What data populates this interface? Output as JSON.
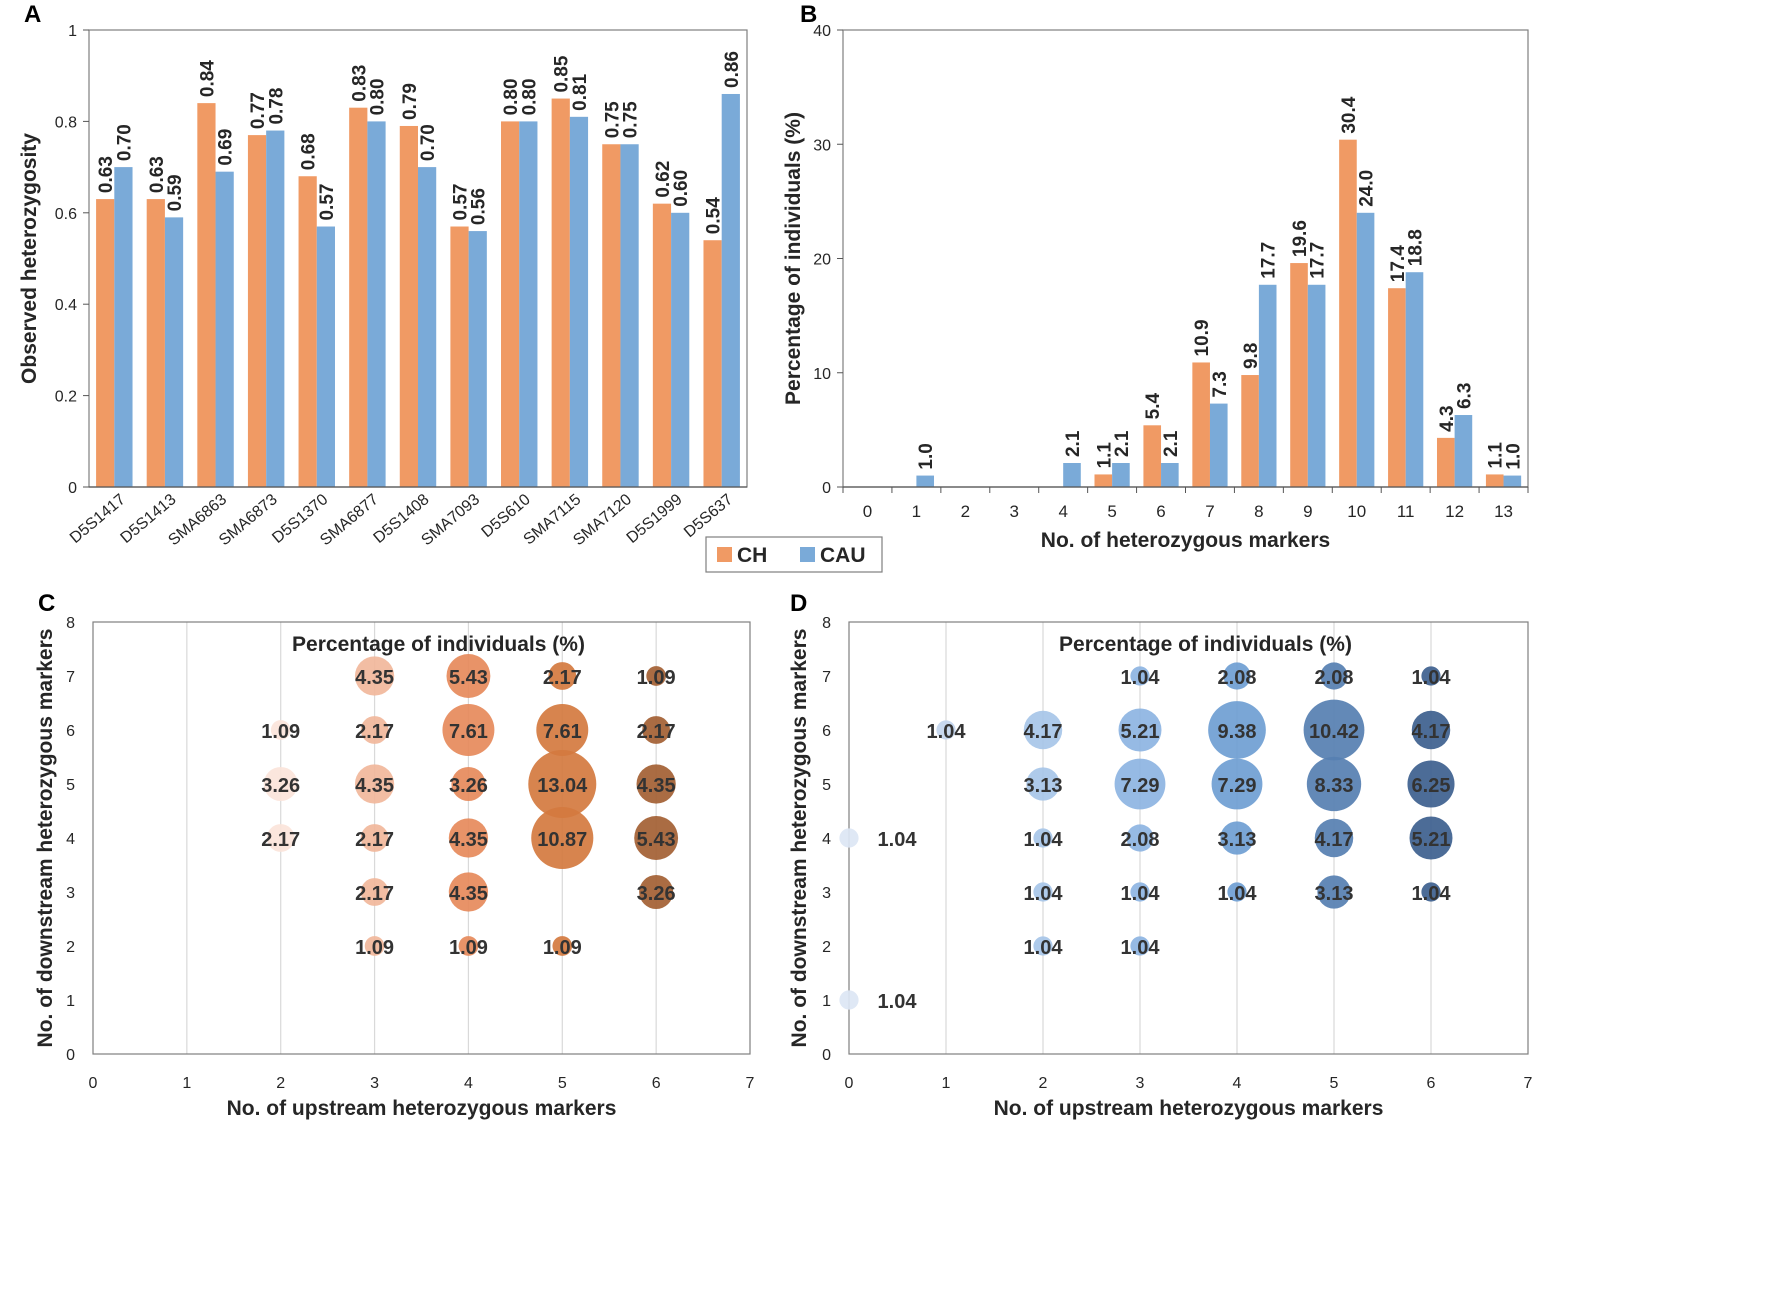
{
  "colors": {
    "ch": "#F09A64",
    "cau": "#7AAAD8",
    "axis": "#333333",
    "grid": "#d9d9d9",
    "text": "#262626"
  },
  "legend": {
    "ch": "CH",
    "cau": "CAU"
  },
  "chart_data": [
    {
      "panel": "A",
      "type": "bar",
      "ylabel": "Observed heterozygosity",
      "xlabel": "",
      "ylim": [
        0,
        1
      ],
      "yticks": [
        "0",
        "0.2",
        "0.4",
        "0.6",
        "0.8",
        "1"
      ],
      "categories": [
        "D5S1417",
        "D5S1413",
        "SMA6863",
        "SMA6873",
        "D5S1370",
        "SMA6877",
        "D5S1408",
        "SMA7093",
        "D5S610",
        "SMA7115",
        "SMA7120",
        "D5S1999",
        "D5S637"
      ],
      "series": [
        {
          "name": "CH",
          "values": [
            0.63,
            0.63,
            0.84,
            0.77,
            0.68,
            0.83,
            0.79,
            0.57,
            0.8,
            0.85,
            0.75,
            0.62,
            0.54
          ],
          "labels": [
            "0.63",
            "0.63",
            "0.84",
            "0.77",
            "0.68",
            "0.83",
            "0.79",
            "0.57",
            "0.80",
            "0.85",
            "0.75",
            "0.62",
            "0.54"
          ]
        },
        {
          "name": "CAU",
          "values": [
            0.7,
            0.59,
            0.69,
            0.78,
            0.57,
            0.8,
            0.7,
            0.56,
            0.8,
            0.81,
            0.75,
            0.6,
            0.86
          ],
          "labels": [
            "0.70",
            "0.59",
            "0.69",
            "0.78",
            "0.57",
            "0.80",
            "0.70",
            "0.56",
            "0.80",
            "0.81",
            "0.75",
            "0.60",
            "0.86"
          ]
        }
      ]
    },
    {
      "panel": "B",
      "type": "bar",
      "ylabel": "Percentage of individuals (%)",
      "xlabel": "No. of heterozygous markers",
      "ylim": [
        0,
        40
      ],
      "yticks": [
        "0",
        "10",
        "20",
        "30",
        "40"
      ],
      "categories": [
        "0",
        "1",
        "2",
        "3",
        "4",
        "5",
        "6",
        "7",
        "8",
        "9",
        "10",
        "11",
        "12",
        "13"
      ],
      "series": [
        {
          "name": "CH",
          "values": [
            0,
            0,
            0,
            0,
            0,
            1.1,
            5.4,
            10.9,
            9.8,
            19.6,
            30.4,
            17.4,
            4.3,
            1.1
          ],
          "labels": [
            "",
            "",
            "",
            "",
            "",
            "1.1",
            "5.4",
            "10.9",
            "9.8",
            "19.6",
            "30.4",
            "17.4",
            "4.3",
            "1.1"
          ]
        },
        {
          "name": "CAU",
          "values": [
            0,
            1.0,
            0,
            0,
            2.1,
            2.1,
            2.1,
            7.3,
            17.7,
            17.7,
            24.0,
            18.8,
            6.3,
            1.0
          ],
          "labels": [
            "",
            "1.0",
            "",
            "",
            "2.1",
            "2.1",
            "2.1",
            "7.3",
            "17.7",
            "17.7",
            "24.0",
            "18.8",
            "6.3",
            "1.0"
          ]
        }
      ]
    },
    {
      "panel": "C",
      "type": "scatter",
      "title": "Percentage of individuals (%)",
      "xlabel": "No. of upstream heterozygous markers",
      "ylabel": "No. of downstream heterozygous markers",
      "xlim": [
        0,
        7
      ],
      "ylim": [
        0,
        8
      ],
      "xticks": [
        "0",
        "1",
        "2",
        "3",
        "4",
        "5",
        "6",
        "7"
      ],
      "yticks": [
        "0",
        "1",
        "2",
        "3",
        "4",
        "5",
        "6",
        "7",
        "8"
      ],
      "points": [
        {
          "x": 2,
          "y": 6,
          "v": 1.09,
          "label": "1.09"
        },
        {
          "x": 2,
          "y": 5,
          "v": 3.26,
          "label": "3.26"
        },
        {
          "x": 2,
          "y": 4,
          "v": 2.17,
          "label": "2.17"
        },
        {
          "x": 3,
          "y": 7,
          "v": 4.35,
          "label": "4.35"
        },
        {
          "x": 3,
          "y": 6,
          "v": 2.17,
          "label": "2.17"
        },
        {
          "x": 3,
          "y": 5,
          "v": 4.35,
          "label": "4.35"
        },
        {
          "x": 3,
          "y": 4,
          "v": 2.17,
          "label": "2.17"
        },
        {
          "x": 3,
          "y": 3,
          "v": 2.17,
          "label": "2.17"
        },
        {
          "x": 3,
          "y": 2,
          "v": 1.09,
          "label": "1.09"
        },
        {
          "x": 4,
          "y": 7,
          "v": 5.43,
          "label": "5.43"
        },
        {
          "x": 4,
          "y": 6,
          "v": 7.61,
          "label": "7.61"
        },
        {
          "x": 4,
          "y": 5,
          "v": 3.26,
          "label": "3.26"
        },
        {
          "x": 4,
          "y": 4,
          "v": 4.35,
          "label": "4.35"
        },
        {
          "x": 4,
          "y": 3,
          "v": 4.35,
          "label": "4.35"
        },
        {
          "x": 4,
          "y": 2,
          "v": 1.09,
          "label": "1.09"
        },
        {
          "x": 5,
          "y": 7,
          "v": 2.17,
          "label": "2.17"
        },
        {
          "x": 5,
          "y": 6,
          "v": 7.61,
          "label": "7.61"
        },
        {
          "x": 5,
          "y": 5,
          "v": 13.04,
          "label": "13.04"
        },
        {
          "x": 5,
          "y": 4,
          "v": 10.87,
          "label": "10.87"
        },
        {
          "x": 5,
          "y": 2,
          "v": 1.09,
          "label": "1.09"
        },
        {
          "x": 6,
          "y": 7,
          "v": 1.09,
          "label": "1.09"
        },
        {
          "x": 6,
          "y": 6,
          "v": 2.17,
          "label": "2.17"
        },
        {
          "x": 6,
          "y": 5,
          "v": 4.35,
          "label": "4.35"
        },
        {
          "x": 6,
          "y": 4,
          "v": 5.43,
          "label": "5.43"
        },
        {
          "x": 6,
          "y": 3,
          "v": 3.26,
          "label": "3.26"
        }
      ]
    },
    {
      "panel": "D",
      "type": "scatter",
      "title": "Percentage of individuals (%)",
      "xlabel": "No. of upstream heterozygous markers",
      "ylabel": "No. of downstream heterozygous markers",
      "xlim": [
        0,
        7
      ],
      "ylim": [
        0,
        8
      ],
      "xticks": [
        "0",
        "1",
        "2",
        "3",
        "4",
        "5",
        "6",
        "7"
      ],
      "yticks": [
        "0",
        "1",
        "2",
        "3",
        "4",
        "5",
        "6",
        "7",
        "8"
      ],
      "points": [
        {
          "x": 0,
          "y": 4,
          "v": 1.04,
          "label": "1.04"
        },
        {
          "x": 0,
          "y": 1,
          "v": 1.04,
          "label": "1.04"
        },
        {
          "x": 1,
          "y": 6,
          "v": 1.04,
          "label": "1.04"
        },
        {
          "x": 2,
          "y": 6,
          "v": 4.17,
          "label": "4.17"
        },
        {
          "x": 2,
          "y": 5,
          "v": 3.13,
          "label": "3.13"
        },
        {
          "x": 2,
          "y": 4,
          "v": 1.04,
          "label": "1.04"
        },
        {
          "x": 2,
          "y": 3,
          "v": 1.04,
          "label": "1.04"
        },
        {
          "x": 2,
          "y": 2,
          "v": 1.04,
          "label": "1.04"
        },
        {
          "x": 3,
          "y": 7,
          "v": 1.04,
          "label": "1.04"
        },
        {
          "x": 3,
          "y": 6,
          "v": 5.21,
          "label": "5.21"
        },
        {
          "x": 3,
          "y": 5,
          "v": 7.29,
          "label": "7.29"
        },
        {
          "x": 3,
          "y": 4,
          "v": 2.08,
          "label": "2.08"
        },
        {
          "x": 3,
          "y": 3,
          "v": 1.04,
          "label": "1.04"
        },
        {
          "x": 3,
          "y": 2,
          "v": 1.04,
          "label": "1.04"
        },
        {
          "x": 4,
          "y": 7,
          "v": 2.08,
          "label": "2.08"
        },
        {
          "x": 4,
          "y": 6,
          "v": 9.38,
          "label": "9.38"
        },
        {
          "x": 4,
          "y": 5,
          "v": 7.29,
          "label": "7.29"
        },
        {
          "x": 4,
          "y": 4,
          "v": 3.13,
          "label": "3.13"
        },
        {
          "x": 4,
          "y": 3,
          "v": 1.04,
          "label": "1.04"
        },
        {
          "x": 5,
          "y": 7,
          "v": 2.08,
          "label": "2.08"
        },
        {
          "x": 5,
          "y": 6,
          "v": 10.42,
          "label": "10.42"
        },
        {
          "x": 5,
          "y": 5,
          "v": 8.33,
          "label": "8.33"
        },
        {
          "x": 5,
          "y": 4,
          "v": 4.17,
          "label": "4.17"
        },
        {
          "x": 5,
          "y": 3,
          "v": 3.13,
          "label": "3.13"
        },
        {
          "x": 6,
          "y": 7,
          "v": 1.04,
          "label": "1.04"
        },
        {
          "x": 6,
          "y": 6,
          "v": 4.17,
          "label": "4.17"
        },
        {
          "x": 6,
          "y": 5,
          "v": 6.25,
          "label": "6.25"
        },
        {
          "x": 6,
          "y": 4,
          "v": 5.21,
          "label": "5.21"
        },
        {
          "x": 6,
          "y": 3,
          "v": 1.04,
          "label": "1.04"
        }
      ]
    }
  ]
}
